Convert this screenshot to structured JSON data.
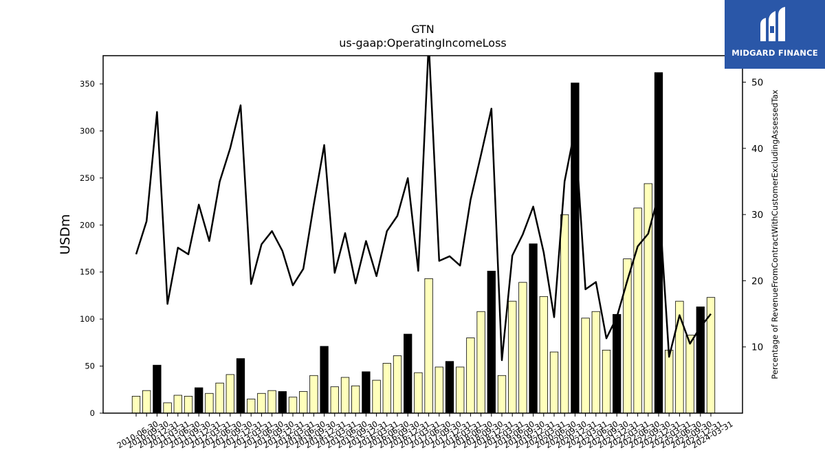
{
  "chart_data": {
    "type": "bar",
    "title": "GTN",
    "subtitle": "us-gaap:OperatingIncomeLoss",
    "ylabel": "USDm",
    "y2label": "Percentage of RevenueFromContractWithCustomerExcludingAssessedTax",
    "ylim": [
      0,
      380
    ],
    "y2lim": [
      0,
      54
    ],
    "yticks": [
      0,
      50,
      100,
      150,
      200,
      250,
      300,
      350
    ],
    "y2ticks": [
      10,
      20,
      30,
      40,
      50
    ],
    "categories": [
      "2010-06-30",
      "2010-09-30",
      "2010-12-31",
      "2011-03-31",
      "2011-06-30",
      "2011-09-30",
      "2011-12-31",
      "2012-03-31",
      "2012-06-30",
      "2012-09-30",
      "2012-12-31",
      "2013-03-31",
      "2013-06-30",
      "2013-09-30",
      "2013-12-31",
      "2014-03-31",
      "2014-06-30",
      "2014-09-30",
      "2014-12-31",
      "2015-03-31",
      "2015-06-30",
      "2015-09-30",
      "2015-12-31",
      "2016-03-31",
      "2016-06-30",
      "2016-09-30",
      "2016-12-31",
      "2017-03-31",
      "2017-06-30",
      "2017-09-30",
      "2017-12-31",
      "2018-03-31",
      "2018-06-30",
      "2018-09-30",
      "2018-12-31",
      "2019-03-31",
      "2019-06-30",
      "2019-09-30",
      "2019-12-31",
      "2020-03-31",
      "2020-06-30",
      "2020-09-30",
      "2020-12-31",
      "2021-03-31",
      "2021-06-30",
      "2021-09-30",
      "2021-12-31",
      "2022-03-31",
      "2022-06-30",
      "2022-09-30",
      "2022-12-31",
      "2023-03-31",
      "2023-06-30",
      "2023-09-30",
      "2023-12-31",
      "2024-03-31"
    ],
    "xticklabels": [
      "2010-06-30",
      "2010-09-30",
      "2010-12-31",
      "2011-03-31",
      "2011-06-30",
      "2011-09-30",
      "2011-12-31",
      "2012-03-31",
      "2012-06-30",
      "2012-09-30",
      "2012-12-31",
      "2013-03-31",
      "2013-06-30",
      "2013-09-30",
      "2013-12-31",
      "2014-03-31",
      "2014-06-30",
      "2014-09-30",
      "2014-12-31",
      "2015-03-31",
      "2015-06-30",
      "2015-09-30",
      "2015-12-31",
      "2016-03-31",
      "2016-06-30",
      "2016-09-30",
      "2016-12-31",
      "2017-03-31",
      "2017-06-30",
      "2017-09-30",
      "2017-12-31",
      "2018-03-31",
      "2018-06-30",
      "2018-09-30",
      "2018-12-31",
      "2019-03-31",
      "2019-06-30",
      "2019-09-30",
      "2019-12-31",
      "2020-03-31",
      "2020-06-30",
      "2020-09-30",
      "2020-12-31",
      "2021-03-31",
      "2021-06-30",
      "2021-09-30",
      "2021-12-31",
      "2022-03-31",
      "2022-06-30",
      "2022-09-30",
      "2022-12-31",
      "2023-03-31",
      "2023-06-30",
      "2023-09-30",
      "2023-12-31",
      "2024-03-31"
    ],
    "series": [
      {
        "type": "bar",
        "axis": "left",
        "values": [
          18,
          24,
          51,
          11,
          19,
          18,
          27,
          21,
          32,
          41,
          58,
          15,
          21,
          24,
          23,
          17,
          23,
          40,
          71,
          28,
          38,
          29,
          44,
          35,
          53,
          61,
          84,
          43,
          143,
          49,
          55,
          49,
          80,
          108,
          151,
          40,
          119,
          139,
          180,
          124,
          65,
          211,
          351,
          101,
          108,
          67,
          105,
          164,
          218,
          244,
          362,
          67,
          119,
          83,
          113,
          123
        ],
        "highlight": [
          false,
          false,
          true,
          false,
          false,
          false,
          true,
          false,
          false,
          false,
          true,
          false,
          false,
          false,
          true,
          false,
          false,
          false,
          true,
          false,
          false,
          false,
          true,
          false,
          false,
          false,
          true,
          false,
          false,
          false,
          true,
          false,
          false,
          false,
          true,
          false,
          false,
          false,
          true,
          false,
          false,
          false,
          true,
          false,
          false,
          false,
          true,
          false,
          false,
          false,
          true,
          false,
          false,
          false,
          true,
          false
        ]
      },
      {
        "type": "line",
        "axis": "right",
        "values": [
          24,
          29,
          45.5,
          16.5,
          25,
          24,
          31.5,
          26,
          35,
          40,
          46.5,
          19.5,
          25.5,
          27.5,
          24.5,
          19.3,
          21.8,
          31.5,
          40.5,
          21.2,
          27.2,
          19.6,
          26,
          20.7,
          27.5,
          29.8,
          35.5,
          21.5,
          56,
          23,
          23.7,
          22.3,
          32.2,
          39,
          46,
          8,
          23.8,
          27,
          31.2,
          24.3,
          14.5,
          35,
          43,
          18.7,
          19.8,
          11.3,
          14.5,
          20,
          25.2,
          27.1,
          33,
          8.5,
          14.8,
          10.5,
          13,
          15
        ]
      }
    ],
    "colors": {
      "bar": "#ffffbb",
      "bar_highlight": "#000000",
      "bar_edge": "#000000",
      "line": "#000000"
    },
    "grid": false,
    "legend": "none"
  },
  "logo": {
    "text": "MIDGARD FINANCE",
    "background": "#2a57a8"
  }
}
